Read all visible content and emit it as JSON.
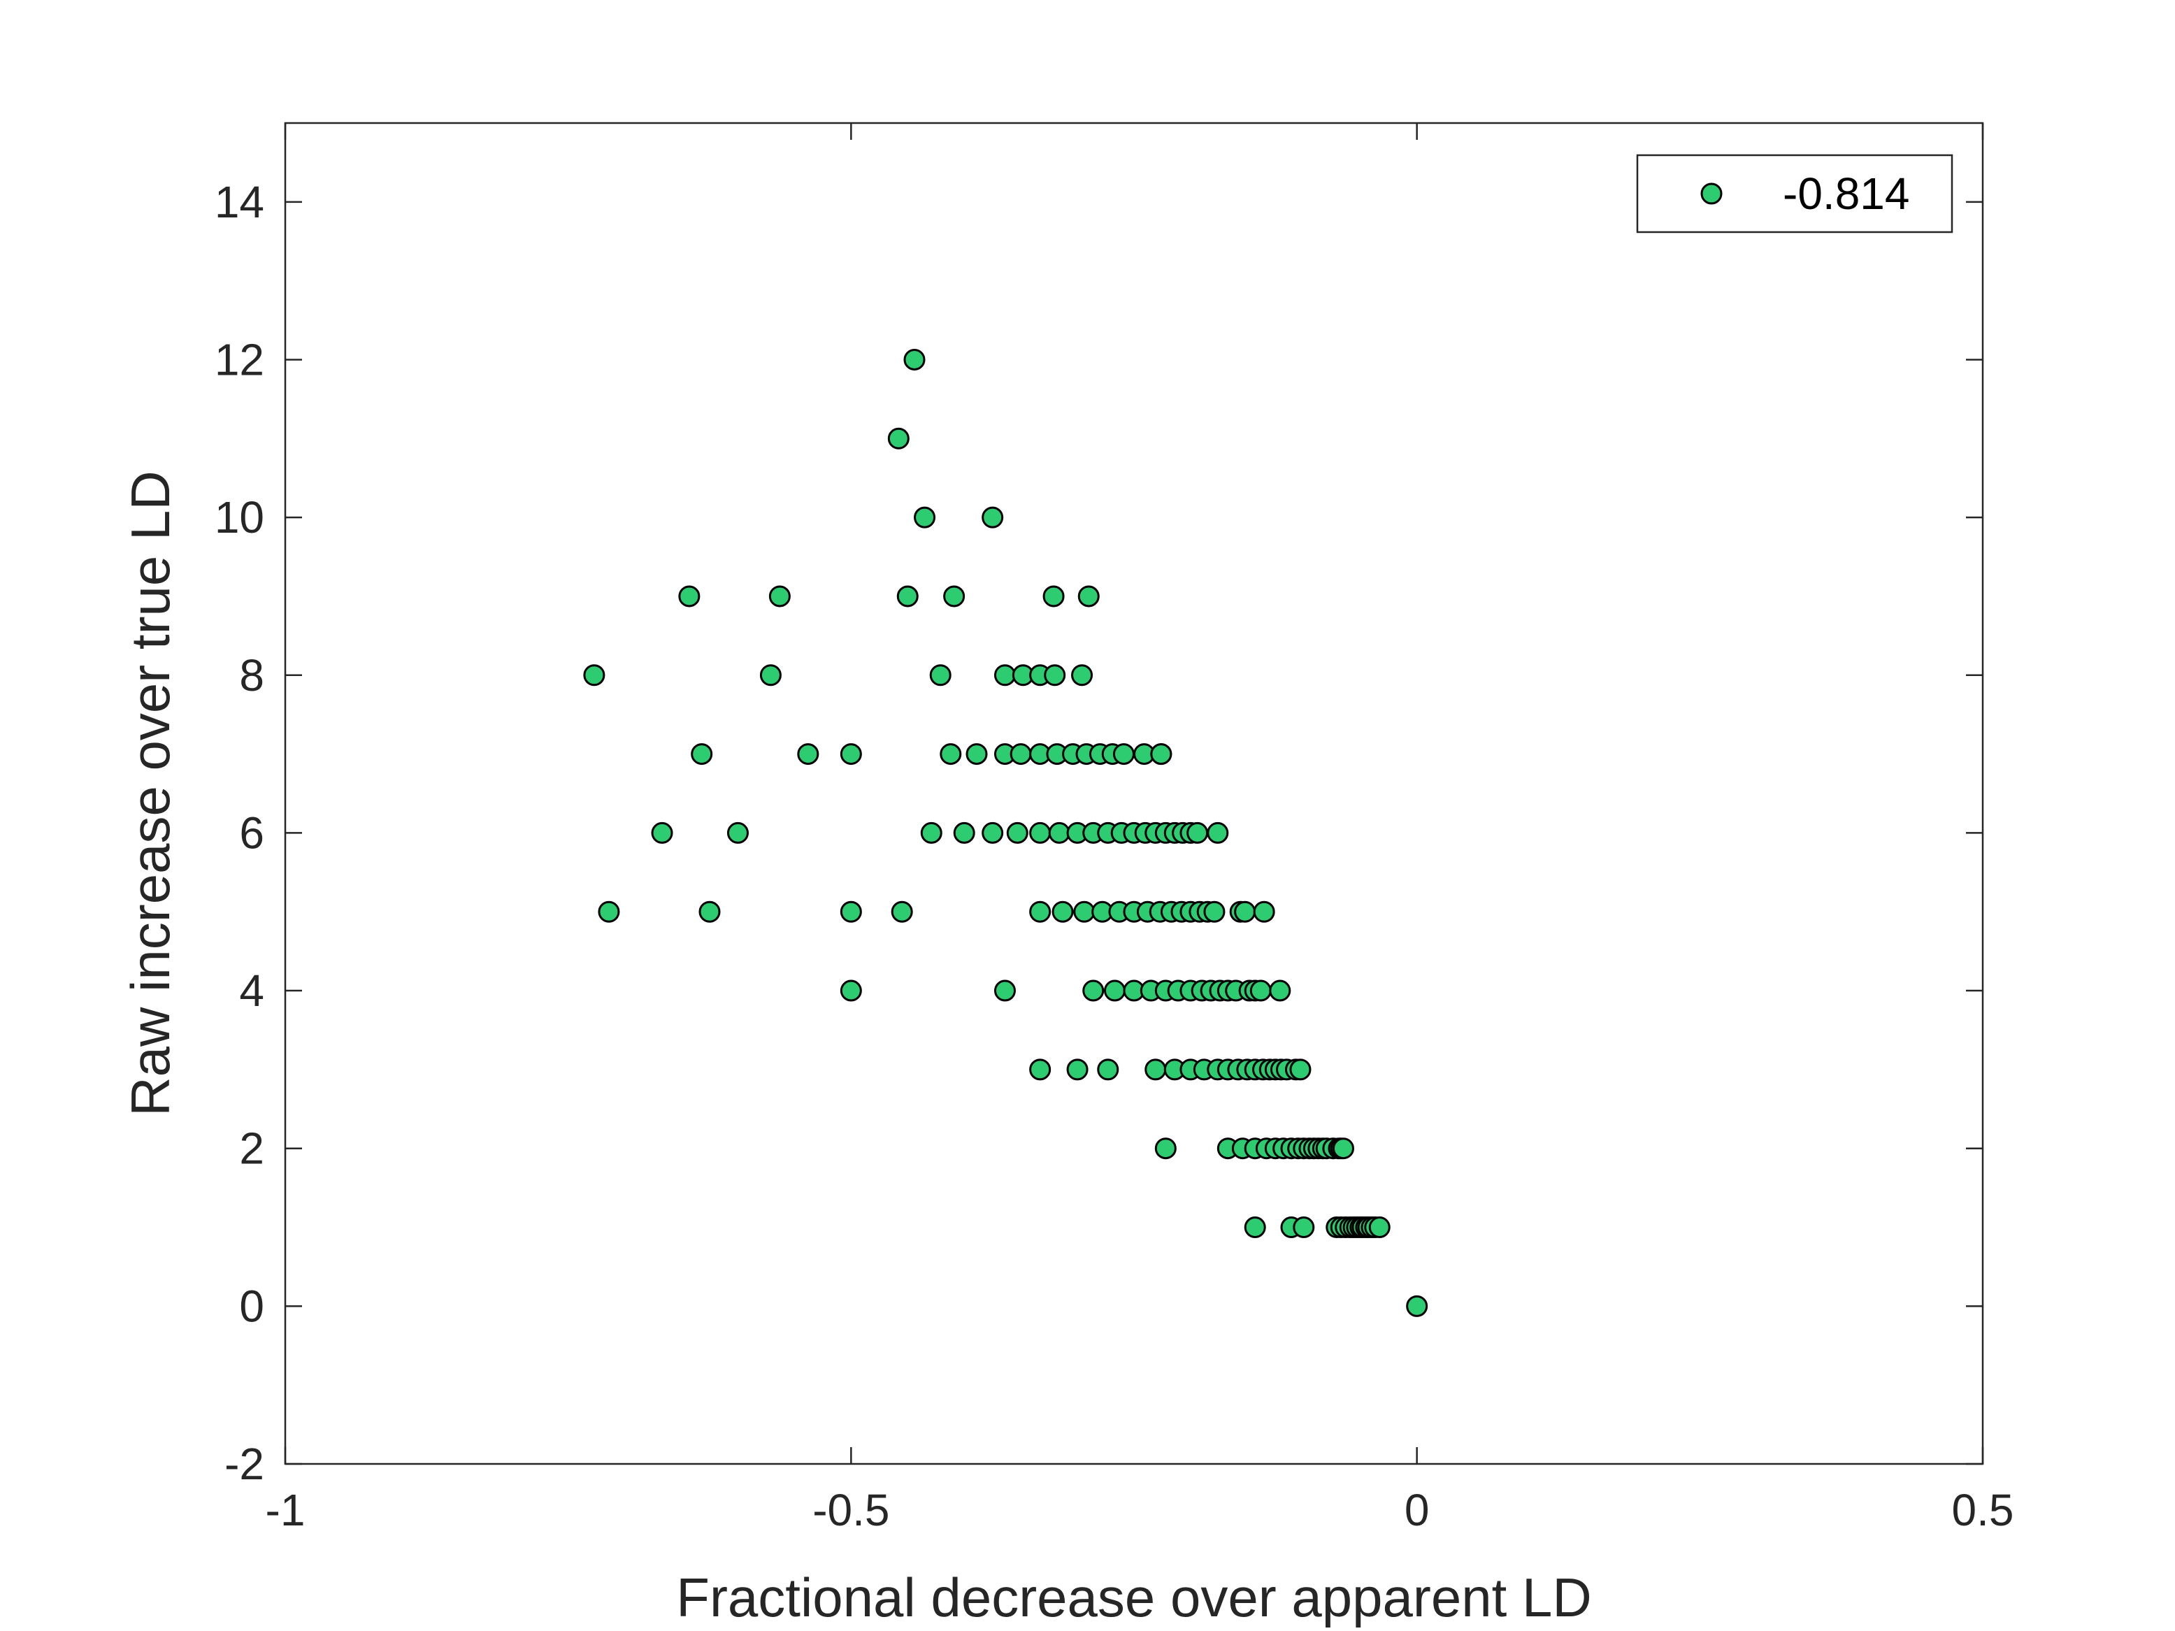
{
  "chart_data": {
    "type": "scatter",
    "xlabel": "Fractional decrease over apparent LD",
    "ylabel": "Raw increase over true LD",
    "xlim": [
      -1,
      0.5
    ],
    "ylim": [
      -2,
      15
    ],
    "xticks": [
      -1,
      -0.5,
      0,
      0.5
    ],
    "xtick_labels": [
      "-1",
      "-0.5",
      "0",
      "0.5"
    ],
    "yticks": [
      -2,
      0,
      2,
      4,
      6,
      8,
      10,
      12,
      14
    ],
    "ytick_labels": [
      "-2",
      "0",
      "2",
      "4",
      "6",
      "8",
      "10",
      "12",
      "14"
    ],
    "grid": false,
    "legend": {
      "position": "top-right"
    },
    "series": [
      {
        "name": "-0.814",
        "color": "#2ecc71",
        "edge_color": "#000000",
        "points": [
          [
            -0.444,
            12
          ],
          [
            -0.458,
            11
          ],
          [
            -0.435,
            10
          ],
          [
            -0.375,
            10
          ],
          [
            -0.643,
            9
          ],
          [
            -0.563,
            9
          ],
          [
            -0.45,
            9
          ],
          [
            -0.409,
            9
          ],
          [
            -0.321,
            9
          ],
          [
            -0.29,
            9
          ],
          [
            -0.727,
            8
          ],
          [
            -0.571,
            8
          ],
          [
            -0.421,
            8
          ],
          [
            -0.364,
            8
          ],
          [
            -0.348,
            8
          ],
          [
            -0.333,
            8
          ],
          [
            -0.32,
            8
          ],
          [
            -0.296,
            8
          ],
          [
            -0.632,
            7
          ],
          [
            -0.538,
            7
          ],
          [
            -0.5,
            7
          ],
          [
            -0.412,
            7
          ],
          [
            -0.389,
            7
          ],
          [
            -0.364,
            7
          ],
          [
            -0.35,
            7
          ],
          [
            -0.333,
            7
          ],
          [
            -0.318,
            7
          ],
          [
            -0.304,
            7
          ],
          [
            -0.292,
            7
          ],
          [
            -0.28,
            7
          ],
          [
            -0.269,
            7
          ],
          [
            -0.259,
            7
          ],
          [
            -0.241,
            7
          ],
          [
            -0.226,
            7
          ],
          [
            -0.226,
            7
          ],
          [
            -0.667,
            6
          ],
          [
            -0.6,
            6
          ],
          [
            -0.429,
            6
          ],
          [
            -0.4,
            6
          ],
          [
            -0.375,
            6
          ],
          [
            -0.353,
            6
          ],
          [
            -0.333,
            6
          ],
          [
            -0.316,
            6
          ],
          [
            -0.3,
            6
          ],
          [
            -0.286,
            6
          ],
          [
            -0.273,
            6
          ],
          [
            -0.261,
            6
          ],
          [
            -0.25,
            6
          ],
          [
            -0.24,
            6
          ],
          [
            -0.231,
            6
          ],
          [
            -0.222,
            6
          ],
          [
            -0.214,
            6
          ],
          [
            -0.207,
            6
          ],
          [
            -0.2,
            6
          ],
          [
            -0.194,
            6
          ],
          [
            -0.176,
            6
          ],
          [
            -0.714,
            5
          ],
          [
            -0.625,
            5
          ],
          [
            -0.5,
            5
          ],
          [
            -0.455,
            5
          ],
          [
            -0.333,
            5
          ],
          [
            -0.313,
            5
          ],
          [
            -0.294,
            5
          ],
          [
            -0.278,
            5
          ],
          [
            -0.263,
            5
          ],
          [
            -0.25,
            5
          ],
          [
            -0.238,
            5
          ],
          [
            -0.227,
            5
          ],
          [
            -0.217,
            5
          ],
          [
            -0.208,
            5
          ],
          [
            -0.2,
            5
          ],
          [
            -0.192,
            5
          ],
          [
            -0.185,
            5
          ],
          [
            -0.179,
            5
          ],
          [
            -0.156,
            5
          ],
          [
            -0.152,
            5
          ],
          [
            -0.135,
            5
          ],
          [
            -0.5,
            4
          ],
          [
            -0.364,
            4
          ],
          [
            -0.286,
            4
          ],
          [
            -0.267,
            4
          ],
          [
            -0.25,
            4
          ],
          [
            -0.235,
            4
          ],
          [
            -0.222,
            4
          ],
          [
            -0.211,
            4
          ],
          [
            -0.2,
            4
          ],
          [
            -0.19,
            4
          ],
          [
            -0.182,
            4
          ],
          [
            -0.174,
            4
          ],
          [
            -0.167,
            4
          ],
          [
            -0.16,
            4
          ],
          [
            -0.148,
            4
          ],
          [
            -0.143,
            4
          ],
          [
            -0.138,
            4
          ],
          [
            -0.121,
            4
          ],
          [
            -0.333,
            3
          ],
          [
            -0.3,
            3
          ],
          [
            -0.273,
            3
          ],
          [
            -0.231,
            3
          ],
          [
            -0.214,
            3
          ],
          [
            -0.2,
            3
          ],
          [
            -0.188,
            3
          ],
          [
            -0.176,
            3
          ],
          [
            -0.167,
            3
          ],
          [
            -0.158,
            3
          ],
          [
            -0.15,
            3
          ],
          [
            -0.143,
            3
          ],
          [
            -0.136,
            3
          ],
          [
            -0.13,
            3
          ],
          [
            -0.125,
            3
          ],
          [
            -0.12,
            3
          ],
          [
            -0.115,
            3
          ],
          [
            -0.107,
            3
          ],
          [
            -0.103,
            3
          ],
          [
            -0.222,
            2
          ],
          [
            -0.167,
            2
          ],
          [
            -0.154,
            2
          ],
          [
            -0.143,
            2
          ],
          [
            -0.133,
            2
          ],
          [
            -0.125,
            2
          ],
          [
            -0.118,
            2
          ],
          [
            -0.111,
            2
          ],
          [
            -0.105,
            2
          ],
          [
            -0.1,
            2
          ],
          [
            -0.095,
            2
          ],
          [
            -0.091,
            2
          ],
          [
            -0.087,
            2
          ],
          [
            -0.083,
            2
          ],
          [
            -0.08,
            2
          ],
          [
            -0.074,
            2
          ],
          [
            -0.069,
            2
          ],
          [
            -0.067,
            2
          ],
          [
            -0.065,
            2
          ],
          [
            -0.143,
            1
          ],
          [
            -0.111,
            1
          ],
          [
            -0.1,
            1
          ],
          [
            -0.071,
            1
          ],
          [
            -0.067,
            1
          ],
          [
            -0.063,
            1
          ],
          [
            -0.059,
            1
          ],
          [
            -0.056,
            1
          ],
          [
            -0.053,
            1
          ],
          [
            -0.05,
            1
          ],
          [
            -0.048,
            1
          ],
          [
            -0.045,
            1
          ],
          [
            -0.043,
            1
          ],
          [
            -0.04,
            1
          ],
          [
            -0.037,
            1
          ],
          [
            -0.033,
            1
          ],
          [
            0,
            0
          ]
        ]
      }
    ]
  }
}
